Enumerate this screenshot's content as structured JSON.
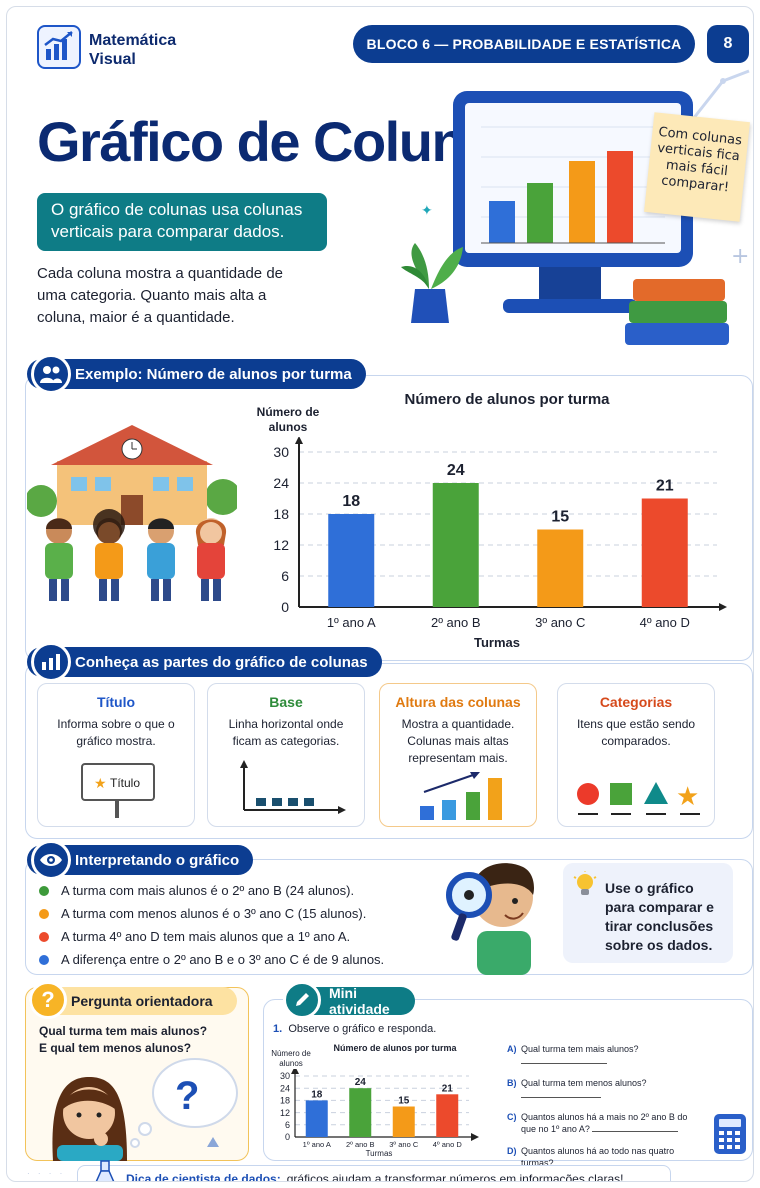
{
  "header": {
    "logo_line1": "Matemática",
    "logo_line2": "Visual",
    "block": "BLOCO 6 — PROBABILIDADE E ESTATÍSTICA",
    "page": "8"
  },
  "hero": {
    "title": "Gráfico de Colunas",
    "lead": "O gráfico de colunas usa colunas verticais para comparar dados.",
    "intro": "Cada coluna mostra a quantidade de uma categoria. Quanto mais alta a coluna, maior é a quantidade.",
    "note": "Com colunas verticais fica mais fácil comparar!"
  },
  "example": {
    "header": "Exemplo: Número de alunos por turma"
  },
  "chart_data": [
    {
      "type": "bar",
      "title": "Número de alunos por turma",
      "ylabel": "Número de alunos",
      "xlabel": "Turmas",
      "categories": [
        "1º ano A",
        "2º ano B",
        "3º ano C",
        "4º ano D"
      ],
      "values": [
        18,
        24,
        15,
        21
      ],
      "colors": [
        "#2f6fd8",
        "#4aa33a",
        "#f49a18",
        "#ec4a2c"
      ],
      "ylim": [
        0,
        30
      ],
      "yticks": [
        0,
        6,
        12,
        18,
        24,
        30
      ],
      "grid": true
    },
    {
      "type": "bar",
      "title": "Número de alunos por turma",
      "ylabel": "Número de alunos",
      "xlabel": "Turmas",
      "categories": [
        "1º ano A",
        "2º ano B",
        "3º ano C",
        "4º ano D"
      ],
      "values": [
        18,
        24,
        15,
        21
      ],
      "colors": [
        "#2f6fd8",
        "#4aa33a",
        "#f49a18",
        "#ec4a2c"
      ],
      "ylim": [
        0,
        30
      ],
      "yticks": [
        0,
        6,
        12,
        18,
        24,
        30
      ],
      "grid": true
    }
  ],
  "parts": {
    "header": "Conheça as partes do gráfico de colunas",
    "cards": [
      {
        "title": "Título",
        "text": "Informa sobre o que o gráfico mostra.",
        "color": "#1e56c8",
        "sign": "Título"
      },
      {
        "title": "Base",
        "text": "Linha horizontal onde ficam as categorias.",
        "color": "#2e8b3a"
      },
      {
        "title": "Altura das colunas",
        "text": "Mostra a quantidade. Colunas mais altas representam mais.",
        "color": "#e07a10"
      },
      {
        "title": "Categorias",
        "text": "Itens que estão sendo comparados.",
        "color": "#d64a1c"
      }
    ]
  },
  "interpret": {
    "header": "Interpretando o gráfico",
    "items": [
      {
        "text": "A turma com mais alunos é o 2º ano B (24 alunos).",
        "color": "#3d9a3a"
      },
      {
        "text": "A turma com menos alunos é o 3º ano C (15 alunos).",
        "color": "#f49a18"
      },
      {
        "text": "A turma 4º ano D tem mais alunos que a 1º ano A.",
        "color": "#ec4a2c"
      },
      {
        "text": "A diferença entre o 2º ano B e o 3º ano C é de 9 alunos.",
        "color": "#2f6fd8"
      }
    ],
    "tip": "Use o gráfico para comparar e tirar conclusões sobre os dados."
  },
  "question": {
    "header": "Pergunta orientadora",
    "text": "Qual turma tem mais alunos? E qual tem menos alunos?",
    "mark": "?"
  },
  "activity": {
    "header": "Mini atividade",
    "num": "1.",
    "instruction": "Observe o gráfico e responda.",
    "questions": [
      {
        "letter": "A)",
        "text": "Qual turma tem mais alunos?"
      },
      {
        "letter": "B)",
        "text": "Qual turma tem menos alunos?"
      },
      {
        "letter": "C)",
        "text": "Quantos alunos há a mais no 2º ano B do que no 1º ano A?"
      },
      {
        "letter": "D)",
        "text": "Quantos alunos há ao todo nas quatro turmas?"
      }
    ]
  },
  "footer": {
    "bold": "Dica de cientista de dados:",
    "text": "gráficos ajudam a transformar números em informações claras!"
  }
}
